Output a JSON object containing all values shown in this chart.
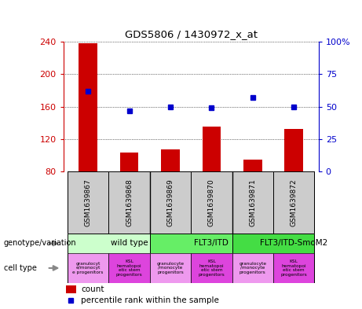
{
  "title": "GDS5806 / 1430972_x_at",
  "samples": [
    "GSM1639867",
    "GSM1639868",
    "GSM1639869",
    "GSM1639870",
    "GSM1639871",
    "GSM1639872"
  ],
  "counts": [
    238,
    103,
    107,
    135,
    95,
    132
  ],
  "percentile_ranks": [
    62,
    47,
    50,
    49,
    57,
    50
  ],
  "ylim_left": [
    80,
    240
  ],
  "ylim_right": [
    0,
    100
  ],
  "yticks_left": [
    80,
    120,
    160,
    200,
    240
  ],
  "yticks_right": [
    0,
    25,
    50,
    75,
    100
  ],
  "bar_color": "#cc0000",
  "dot_color": "#0000cc",
  "genotype_groups": [
    {
      "label": "wild type",
      "start": 0,
      "end": 2,
      "color": "#ccffcc"
    },
    {
      "label": "FLT3/ITD",
      "start": 2,
      "end": 4,
      "color": "#66ee66"
    },
    {
      "label": "FLT3/ITD-SmoM2",
      "start": 4,
      "end": 6,
      "color": "#44dd44"
    }
  ],
  "cell_types": [
    {
      "label": "granulocyt\ne/monocyt\ne progenitors",
      "color": "#ee99ee"
    },
    {
      "label": "KSL\nhematopoi\netic stem\nprogenitors",
      "color": "#dd44dd"
    },
    {
      "label": "granulocyte\n/monocyte\nprogenitors",
      "color": "#ee99ee"
    },
    {
      "label": "KSL\nhematopoi\netic stem\nprogenitors",
      "color": "#dd44dd"
    },
    {
      "label": "granulocyte\n/monocyte\nprogenitors",
      "color": "#ee99ee"
    },
    {
      "label": "KSL\nhematopoi\netic stem\nprogenitors",
      "color": "#dd44dd"
    }
  ],
  "legend_count_color": "#cc0000",
  "legend_dot_color": "#0000cc",
  "sample_box_color": "#cccccc",
  "bar_width": 0.45,
  "left_label_color": "#cc0000",
  "right_label_color": "#0000cc",
  "ytick_right_labels": [
    "0",
    "25",
    "50",
    "75",
    "100%"
  ]
}
